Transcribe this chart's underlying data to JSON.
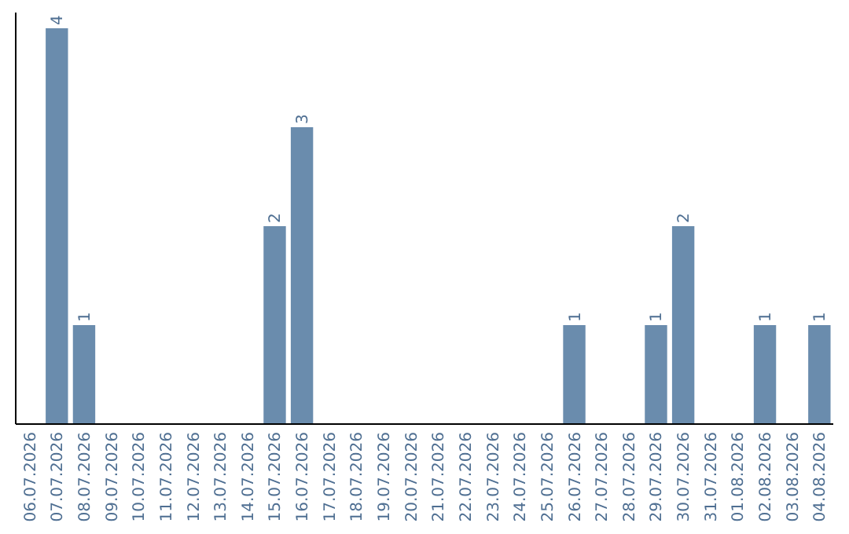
{
  "chart_data": {
    "type": "bar",
    "categories": [
      "06.07.2026",
      "07.07.2026",
      "08.07.2026",
      "09.07.2026",
      "10.07.2026",
      "11.07.2026",
      "12.07.2026",
      "13.07.2026",
      "14.07.2026",
      "15.07.2026",
      "16.07.2026",
      "17.07.2026",
      "18.07.2026",
      "19.07.2026",
      "20.07.2026",
      "21.07.2026",
      "22.07.2026",
      "23.07.2026",
      "24.07.2026",
      "25.07.2026",
      "26.07.2026",
      "27.07.2026",
      "28.07.2026",
      "29.07.2026",
      "30.07.2026",
      "31.07.2026",
      "01.08.2026",
      "02.08.2026",
      "03.08.2026",
      "04.08.2026"
    ],
    "values": [
      0,
      4,
      1,
      0,
      0,
      0,
      0,
      0,
      0,
      2,
      3,
      0,
      0,
      0,
      0,
      0,
      0,
      0,
      0,
      0,
      1,
      0,
      0,
      1,
      2,
      0,
      0,
      1,
      0,
      1
    ],
    "value_labels": [
      null,
      "4",
      "1",
      null,
      null,
      null,
      null,
      null,
      null,
      "2",
      "3",
      null,
      null,
      null,
      null,
      null,
      null,
      null,
      null,
      null,
      "1",
      null,
      null,
      "1",
      "2",
      null,
      null,
      "1",
      null,
      "1"
    ],
    "color": "#6a8cad",
    "tick_labels": "x"
  }
}
